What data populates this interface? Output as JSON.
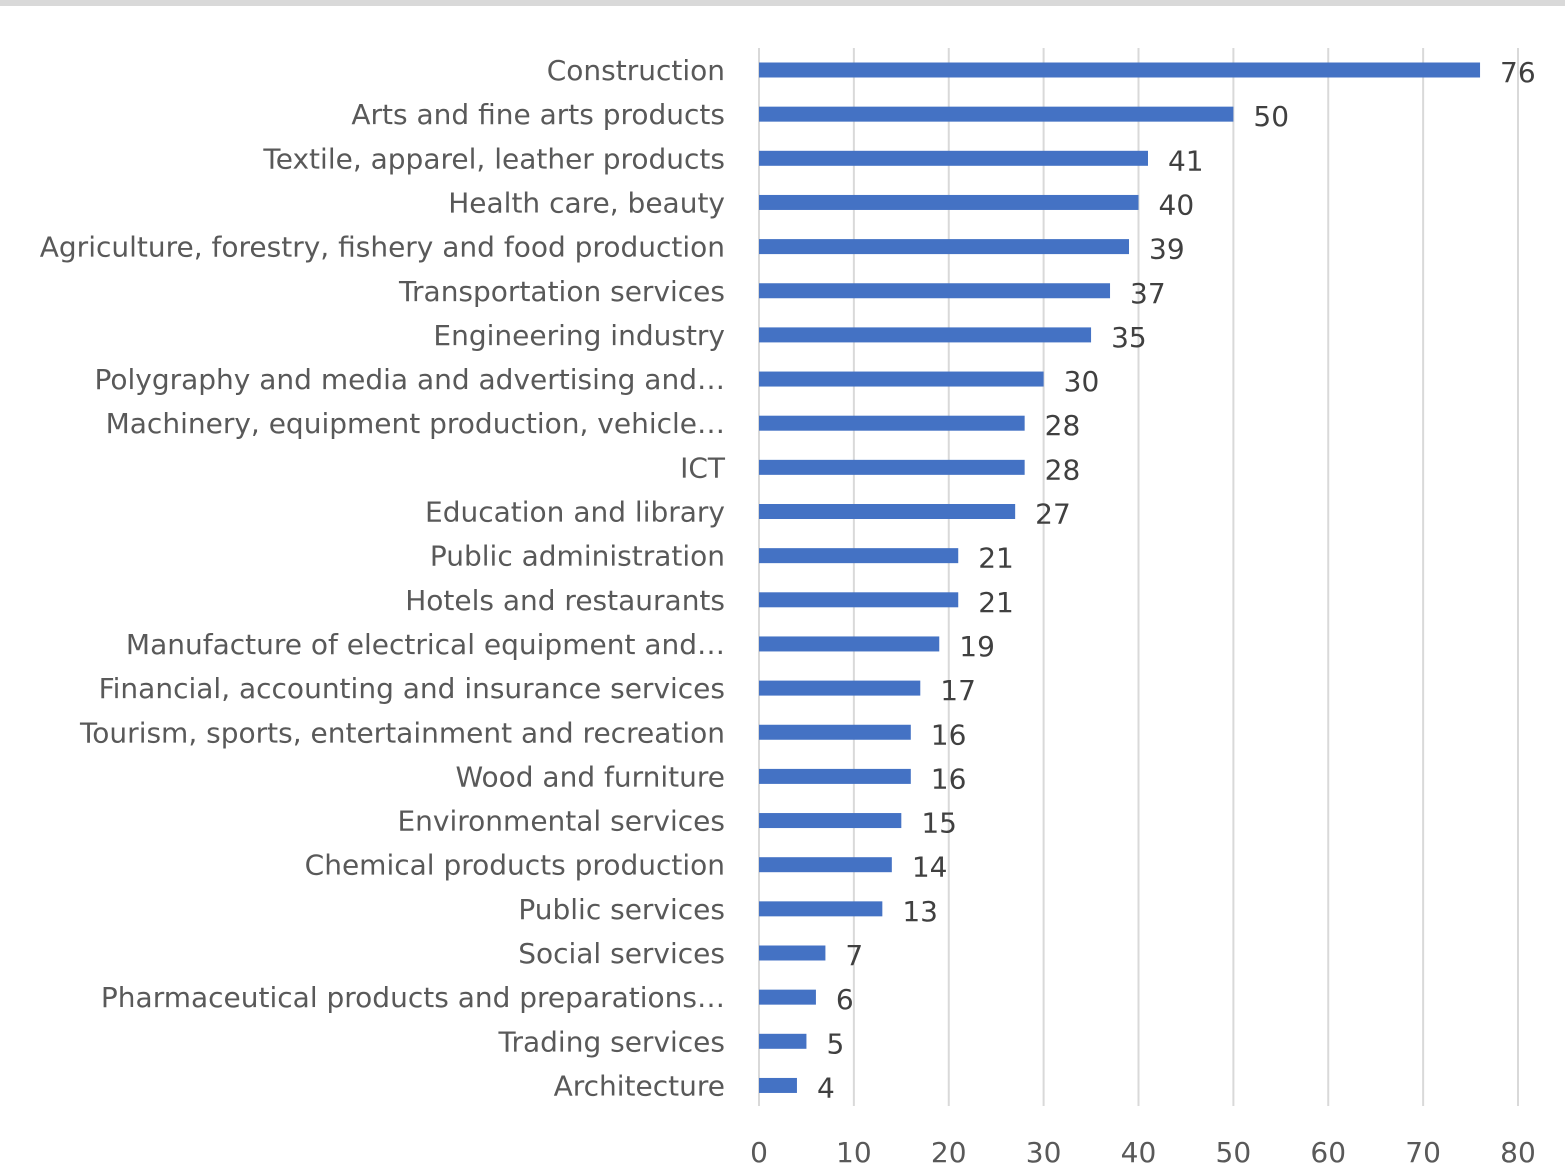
{
  "chart_data": {
    "type": "bar",
    "orientation": "horizontal",
    "categories": [
      "Construction",
      "Arts and fine arts products",
      "Textile, apparel, leather products",
      "Health care, beauty",
      "Agriculture, forestry, fishery and food production",
      "Transportation services",
      "Engineering industry",
      "Polygraphy and media and advertising and…",
      "Machinery, equipment production, vehicle…",
      "ICT",
      "Education and library",
      "Public administration",
      "Hotels and restaurants",
      "Manufacture of electrical equipment and…",
      "Financial, accounting and insurance services",
      "Tourism, sports, entertainment and recreation",
      "Wood and furniture",
      "Environmental services",
      "Chemical products production",
      "Public services",
      "Social services",
      "Pharmaceutical products and preparations…",
      "Trading services",
      "Architecture"
    ],
    "values": [
      76,
      50,
      41,
      40,
      39,
      37,
      35,
      30,
      28,
      28,
      27,
      21,
      21,
      19,
      17,
      16,
      16,
      15,
      14,
      13,
      7,
      6,
      5,
      4
    ],
    "xlim": [
      0,
      80
    ],
    "x_ticks": [
      "0",
      "10",
      "20",
      "30",
      "40",
      "50",
      "60",
      "70",
      "80"
    ],
    "grid": "vertical",
    "data_labels": true,
    "legend": "none",
    "bar_color": "#4472C4",
    "grid_color": "#D9D9D9"
  }
}
